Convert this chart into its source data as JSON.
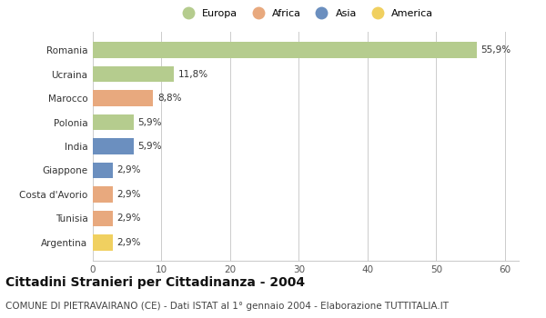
{
  "countries": [
    "Romania",
    "Ucraina",
    "Marocco",
    "Polonia",
    "India",
    "Giappone",
    "Costa d'Avorio",
    "Tunisia",
    "Argentina"
  ],
  "values": [
    55.9,
    11.8,
    8.8,
    5.9,
    5.9,
    2.9,
    2.9,
    2.9,
    2.9
  ],
  "labels": [
    "55,9%",
    "11,8%",
    "8,8%",
    "5,9%",
    "5,9%",
    "2,9%",
    "2,9%",
    "2,9%",
    "2,9%"
  ],
  "continents": [
    "Europa",
    "Europa",
    "Africa",
    "Europa",
    "Asia",
    "Asia",
    "Africa",
    "Africa",
    "America"
  ],
  "colors": {
    "Europa": "#b5cc8e",
    "Africa": "#e8a97e",
    "Asia": "#6b8fbf",
    "America": "#f0d060"
  },
  "legend_order": [
    "Europa",
    "Africa",
    "Asia",
    "America"
  ],
  "xlim": [
    0,
    62
  ],
  "xticks": [
    0,
    10,
    20,
    30,
    40,
    50,
    60
  ],
  "title": "Cittadini Stranieri per Cittadinanza - 2004",
  "subtitle": "COMUNE DI PIETRAVAIRANO (CE) - Dati ISTAT al 1° gennaio 2004 - Elaborazione TUTTITALIA.IT",
  "title_fontsize": 10,
  "subtitle_fontsize": 7.5,
  "label_fontsize": 7.5,
  "tick_fontsize": 7.5,
  "legend_fontsize": 8,
  "bg_color": "#ffffff",
  "plot_bg_color": "#ffffff",
  "grid_color": "#cccccc"
}
